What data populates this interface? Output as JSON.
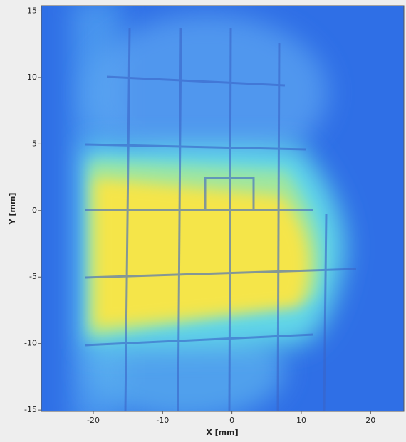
{
  "chart_data": {
    "type": "heatmap",
    "xlabel": "X [mm]",
    "ylabel": "Y [mm]",
    "xlim": [
      -27.5,
      24.8
    ],
    "ylim": [
      -15.1,
      15.4
    ],
    "xticks": [
      -20,
      -10,
      0,
      10,
      20
    ],
    "yticks": [
      -15,
      -10,
      -5,
      0,
      5,
      10,
      15
    ]
  }
}
